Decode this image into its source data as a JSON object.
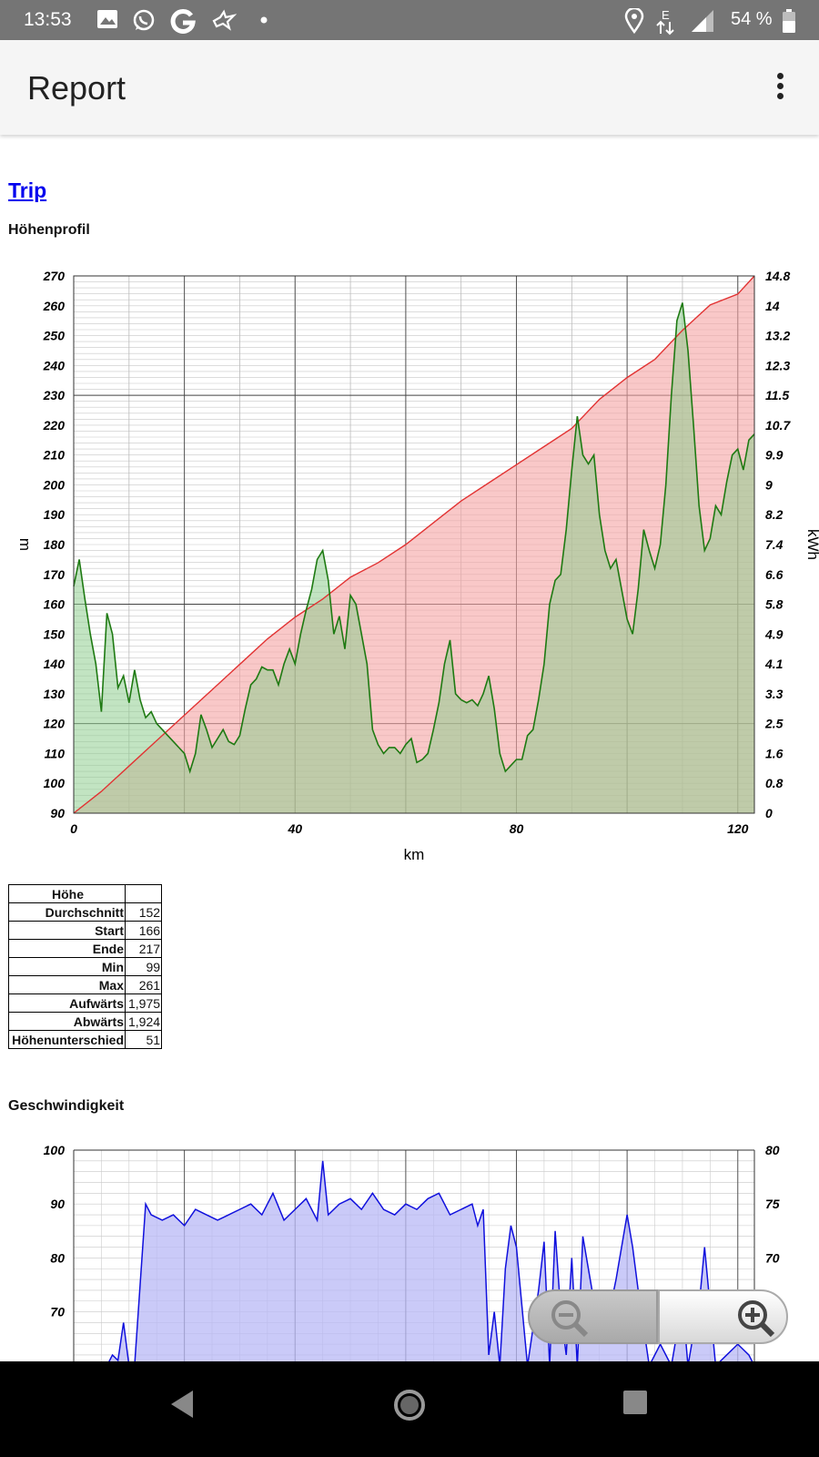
{
  "status_bar": {
    "time": "13:53",
    "battery": "54 %",
    "icons": [
      "image-icon",
      "whatsapp-icon",
      "google-icon",
      "bird-icon",
      "dot-icon",
      "location-icon",
      "data-e-icon",
      "signal-icon",
      "battery-icon"
    ],
    "network_label": "E"
  },
  "app_bar": {
    "title": "Report",
    "menu_icon": "overflow-menu-icon"
  },
  "trip_link": "Trip",
  "elevation": {
    "section_title": "Höhenprofil",
    "chart_data": {
      "type": "area",
      "xlabel": "km",
      "ylabel_left": "m",
      "ylabel_right": "kWh",
      "xlim": [
        0,
        123
      ],
      "ylim_left": [
        90,
        270
      ],
      "ylim_right": [
        0,
        14.8
      ],
      "x_ticks": [
        "0",
        "40",
        "80",
        "120"
      ],
      "y_ticks_left": [
        "270",
        "260",
        "250",
        "240",
        "230",
        "220",
        "210",
        "200",
        "190",
        "180",
        "170",
        "160",
        "150",
        "140",
        "130",
        "120",
        "110",
        "100",
        "90"
      ],
      "y_ticks_right": [
        "14.8",
        "14",
        "13.2",
        "12.3",
        "11.5",
        "10.7",
        "9.9",
        "9",
        "8.2",
        "7.4",
        "6.6",
        "5.8",
        "4.9",
        "4.1",
        "3.3",
        "2.5",
        "1.6",
        "0.8",
        "0"
      ],
      "grid": true,
      "series": [
        {
          "axis": "left",
          "color": "#1e7a12",
          "fill": "#8fce8f",
          "x": [
            0,
            1,
            2,
            3,
            4,
            5,
            6,
            7,
            8,
            9,
            10,
            11,
            12,
            13,
            14,
            15,
            16,
            17,
            18,
            19,
            20,
            21,
            22,
            23,
            24,
            25,
            26,
            27,
            28,
            29,
            30,
            31,
            32,
            33,
            34,
            35,
            36,
            37,
            38,
            39,
            40,
            41,
            42,
            43,
            44,
            45,
            46,
            47,
            48,
            49,
            50,
            51,
            52,
            53,
            54,
            55,
            56,
            57,
            58,
            59,
            60,
            61,
            62,
            63,
            64,
            65,
            66,
            67,
            68,
            69,
            70,
            71,
            72,
            73,
            74,
            75,
            76,
            77,
            78,
            79,
            80,
            81,
            82,
            83,
            84,
            85,
            86,
            87,
            88,
            89,
            90,
            91,
            92,
            93,
            94,
            95,
            96,
            97,
            98,
            99,
            100,
            101,
            102,
            103,
            104,
            105,
            106,
            107,
            108,
            109,
            110,
            111,
            112,
            113,
            114,
            115,
            116,
            117,
            118,
            119,
            120,
            121,
            122,
            123
          ],
          "values": [
            166,
            175,
            162,
            150,
            140,
            124,
            157,
            150,
            132,
            136,
            127,
            138,
            128,
            122,
            124,
            120,
            118,
            116,
            114,
            112,
            110,
            104,
            110,
            123,
            118,
            112,
            115,
            118,
            114,
            113,
            116,
            125,
            133,
            135,
            139,
            138,
            138,
            133,
            140,
            145,
            140,
            150,
            158,
            165,
            175,
            178,
            168,
            150,
            156,
            145,
            163,
            160,
            150,
            140,
            118,
            113,
            110,
            112,
            112,
            110,
            113,
            115,
            107,
            108,
            110,
            118,
            127,
            140,
            148,
            130,
            128,
            127,
            128,
            126,
            130,
            136,
            125,
            110,
            104,
            106,
            108,
            108,
            116,
            118,
            128,
            140,
            160,
            168,
            170,
            185,
            205,
            223,
            210,
            207,
            210,
            190,
            178,
            172,
            175,
            165,
            155,
            150,
            165,
            185,
            178,
            172,
            180,
            200,
            230,
            255,
            261,
            245,
            220,
            193,
            178,
            182,
            193,
            190,
            201,
            210,
            212,
            205,
            215,
            217
          ]
        },
        {
          "axis": "right",
          "color": "#e23333",
          "fill": "#f5a3a3",
          "x": [
            0,
            5,
            10,
            15,
            20,
            25,
            30,
            35,
            40,
            45,
            50,
            55,
            60,
            65,
            70,
            75,
            80,
            85,
            90,
            95,
            100,
            105,
            110,
            115,
            120,
            123
          ],
          "values": [
            0,
            0.6,
            1.3,
            2.0,
            2.7,
            3.4,
            4.1,
            4.8,
            5.4,
            5.9,
            6.5,
            6.9,
            7.4,
            8.0,
            8.6,
            9.1,
            9.6,
            10.1,
            10.6,
            11.4,
            12.0,
            12.5,
            13.3,
            14.0,
            14.3,
            14.8
          ]
        }
      ]
    }
  },
  "stats": {
    "header": "Höhe",
    "rows": [
      {
        "label": "Durchschnitt",
        "value": "152"
      },
      {
        "label": "Start",
        "value": "166"
      },
      {
        "label": "Ende",
        "value": "217"
      },
      {
        "label": "Min",
        "value": "99"
      },
      {
        "label": "Max",
        "value": "261"
      },
      {
        "label": "Aufwärts",
        "value": "1,975"
      },
      {
        "label": "Abwärts",
        "value": "1,924"
      },
      {
        "label": "Höhenunterschied",
        "value": "51"
      }
    ]
  },
  "speed": {
    "section_title": "Geschwindigkeit",
    "chart_data": {
      "type": "area",
      "y_ticks_left": [
        "100",
        "90",
        "80",
        "70"
      ],
      "y_ticks_right": [
        "80",
        "75",
        "70"
      ],
      "ylim_left": [
        60,
        100
      ],
      "xlim": [
        0,
        123
      ],
      "grid": true,
      "series": [
        {
          "axis": "left",
          "color": "#1010dd",
          "fill": "#b8b8f5",
          "x": [
            0,
            6,
            7,
            8,
            9,
            10,
            11,
            12,
            13,
            14,
            16,
            18,
            20,
            22,
            24,
            26,
            28,
            30,
            32,
            34,
            36,
            38,
            40,
            42,
            44,
            45,
            46,
            48,
            50,
            52,
            54,
            56,
            58,
            60,
            62,
            64,
            66,
            68,
            70,
            72,
            73,
            74,
            75,
            76,
            77,
            78,
            79,
            80,
            82,
            84,
            85,
            86,
            87,
            88,
            89,
            90,
            91,
            92,
            94,
            96,
            98,
            100,
            101,
            102,
            104,
            106,
            108,
            110,
            111,
            112,
            113,
            114,
            116,
            118,
            120,
            122,
            123
          ],
          "values": [
            60,
            60,
            62,
            61,
            68,
            60,
            60,
            75,
            90,
            88,
            87,
            88,
            86,
            89,
            88,
            87,
            88,
            89,
            90,
            88,
            92,
            87,
            89,
            91,
            87,
            98,
            88,
            90,
            91,
            89,
            92,
            89,
            88,
            90,
            89,
            91,
            92,
            88,
            89,
            90,
            86,
            89,
            62,
            70,
            60,
            78,
            86,
            82,
            60,
            74,
            83,
            60,
            85,
            70,
            62,
            80,
            60,
            84,
            72,
            66,
            76,
            88,
            82,
            74,
            60,
            64,
            60,
            72,
            60,
            66,
            71,
            82,
            60,
            62,
            64,
            62,
            60
          ]
        }
      ]
    }
  },
  "zoom": {
    "out_icon": "zoom-out-icon",
    "in_icon": "zoom-in-icon"
  },
  "nav": {
    "back_icon": "back-icon",
    "home_icon": "home-icon",
    "recents_icon": "recents-icon"
  }
}
